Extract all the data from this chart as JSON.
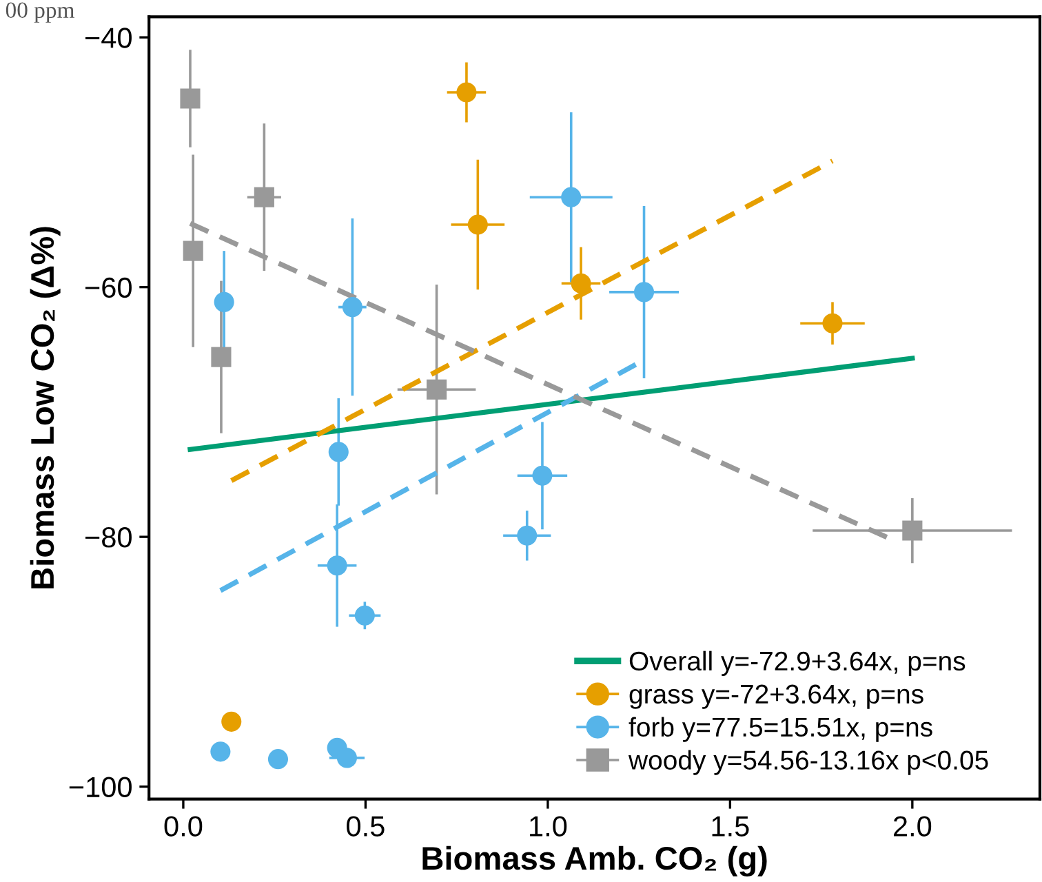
{
  "chart_data": {
    "type": "scatter",
    "xlabel": "Biomass Amb. CO₂ (g)",
    "ylabel": "Biomass Low CO₂ (Δ%)",
    "annotations": [
      "00 ppm"
    ],
    "xlim": [
      -0.094,
      2.35
    ],
    "ylim": [
      -101,
      -38.35
    ],
    "xticks": [
      {
        "value": 0,
        "label": "0.0"
      },
      {
        "value": 0.5,
        "label": "0.5"
      },
      {
        "value": 1,
        "label": "1.0"
      },
      {
        "value": 1.5,
        "label": "1.5"
      },
      {
        "value": 2,
        "label": "2.0"
      }
    ],
    "yticks": [
      {
        "value": -40,
        "label": "−40"
      },
      {
        "value": -60,
        "label": "−60"
      },
      {
        "value": -80,
        "label": "−80"
      },
      {
        "value": -100,
        "label": "−100"
      }
    ],
    "grid": false,
    "legend": "bottom right",
    "series": [
      {
        "type": "line",
        "name": "Overall y=-72.9+3.64x, p=ns",
        "color": "#009e73",
        "line_style": "solid",
        "x": [
          0.019,
          2.0
        ],
        "values": [
          -73.0,
          -65.7
        ]
      },
      {
        "type": "line",
        "color": "#e69f00",
        "line_style": "dashed",
        "x": [
          0.132,
          1.781
        ],
        "values": [
          -75.5,
          -49.9
        ]
      },
      {
        "type": "line",
        "color": "#56b4e9",
        "line_style": "dashed",
        "x": [
          0.102,
          1.26
        ],
        "values": [
          -84.3,
          -65.9
        ]
      },
      {
        "type": "line",
        "color": "#999999",
        "line_style": "dashed",
        "x": [
          0.019,
          1.943
        ],
        "values": [
          -54.9,
          -80.2
        ]
      },
      {
        "name": "grass y=-72+3.64x, p=ns",
        "color": "#e69f00",
        "marker": "circle",
        "x": [
          0.777,
          0.808,
          1.091,
          1.781,
          0.132
        ],
        "values": [
          -44.4,
          -55.0,
          -59.7,
          -62.9,
          -94.8
        ],
        "errors": [
          2.3,
          5.1,
          2.8,
          1.6,
          null
        ],
        "xerrors": [
          0.05,
          0.07,
          0.05,
          0.085,
          null
        ]
      },
      {
        "name": "forb y=77.5=15.51x, p=ns",
        "color": "#56b4e9",
        "marker": "circle",
        "x": [
          0.112,
          0.464,
          0.426,
          0.422,
          0.498,
          0.102,
          0.26,
          0.422,
          0.449,
          1.064,
          1.264,
          0.985,
          0.943
        ],
        "values": [
          -61.2,
          -61.6,
          -73.2,
          -82.3,
          -86.3,
          -97.2,
          -97.8,
          -96.9,
          -97.7,
          -52.8,
          -60.4,
          -75.1,
          -79.9
        ],
        "errors": [
          4.0,
          7.0,
          4.2,
          4.8,
          1.0,
          null,
          null,
          null,
          null,
          6.7,
          6.8,
          4.2,
          1.9
        ],
        "xerrors": [
          null,
          0.035,
          0.02,
          0.05,
          0.04,
          null,
          null,
          null,
          0.045,
          0.11,
          0.092,
          0.065,
          0.062
        ]
      },
      {
        "name": "woody y=54.56-13.16x p<0.05",
        "color": "#999999",
        "marker": "square",
        "x": [
          0.019,
          0.027,
          0.222,
          0.104,
          0.695,
          2.0
        ],
        "values": [
          -44.9,
          -57.1,
          -52.8,
          -65.6,
          -68.2,
          -79.5
        ],
        "errors": [
          3.8,
          7.6,
          5.8,
          6.0,
          8.3,
          2.5
        ],
        "xerrors": [
          null,
          null,
          0.043,
          null,
          0.104,
          0.27
        ]
      }
    ]
  }
}
